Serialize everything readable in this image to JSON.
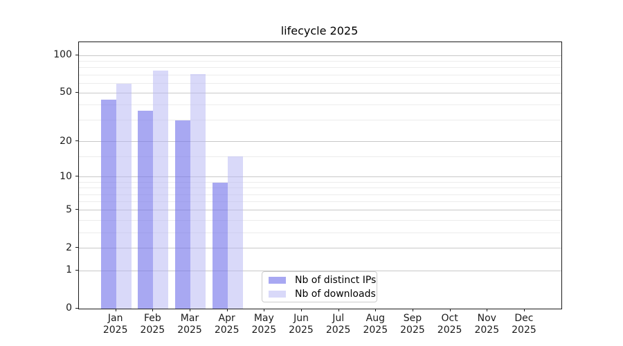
{
  "title": "lifecycle 2025",
  "colors": {
    "spine": "#1a1a1a",
    "text": "#1a1a1a",
    "grid_major": "#c8c8c8",
    "grid_minor": "#ececec",
    "background": "#ffffff"
  },
  "legend": {
    "items": [
      {
        "label": "Nb of distinct IPs"
      },
      {
        "label": "Nb of downloads"
      }
    ]
  },
  "chart_data": {
    "type": "bar",
    "title": "lifecycle 2025",
    "xlabel": "",
    "ylabel": "",
    "y_scale": "log1p",
    "ylim": [
      0,
      128
    ],
    "grid": true,
    "legend_position": "lower center",
    "categories": [
      "Jan 2025",
      "Feb 2025",
      "Mar 2025",
      "Apr 2025",
      "May 2025",
      "Jun 2025",
      "Jul 2025",
      "Aug 2025",
      "Sep 2025",
      "Oct 2025",
      "Nov 2025",
      "Dec 2025"
    ],
    "months": [
      "Jan",
      "Feb",
      "Mar",
      "Apr",
      "May",
      "Jun",
      "Jul",
      "Aug",
      "Sep",
      "Oct",
      "Nov",
      "Dec"
    ],
    "year_label": "2025",
    "y_ticks": [
      0,
      1,
      2,
      5,
      10,
      20,
      50,
      100
    ],
    "y_tick_labels": [
      "0",
      "1",
      "2",
      "5",
      "10",
      "20",
      "50",
      "100"
    ],
    "y_minor_gridlines": [
      3,
      4,
      6,
      7,
      8,
      9,
      15,
      30,
      40,
      60,
      70,
      80,
      90
    ],
    "series": [
      {
        "name": "Nb of distinct IPs",
        "fill": "rgba(115,115,234,0.62)",
        "legend_color": "#a8a8f2",
        "values": [
          44,
          36,
          30,
          9,
          0,
          0,
          0,
          0,
          0,
          0,
          0,
          0
        ]
      },
      {
        "name": "Nb of downloads",
        "fill": "rgba(179,179,243,0.5)",
        "legend_color": "#d9d9f9",
        "values": [
          59,
          76,
          71,
          15,
          0,
          0,
          0,
          0,
          0,
          0,
          0,
          0
        ]
      }
    ]
  }
}
